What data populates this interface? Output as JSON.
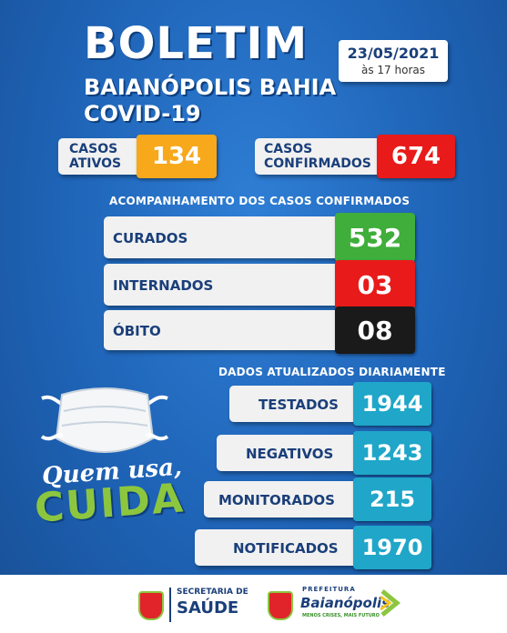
{
  "header": {
    "title": "BOLETIM",
    "subtitle_1": "BAIANÓPOLIS BAHIA",
    "subtitle_2": "COVID-19",
    "date": "23/05/2021",
    "time": "às 17 horas"
  },
  "summary": [
    {
      "label_1": "CASOS",
      "label_2": "ATIVOS",
      "value": "134",
      "color": "#f7a81b"
    },
    {
      "label_1": "CASOS",
      "label_2": "CONFIRMADOS",
      "value": "674",
      "color": "#e81a1a"
    }
  ],
  "confirmed_section": {
    "heading": "ACOMPANHAMENTO DOS CASOS CONFIRMADOS",
    "items": [
      {
        "label": "CURADOS",
        "value": "532",
        "color": "#3fae3a"
      },
      {
        "label": "INTERNADOS",
        "value": "03",
        "color": "#e81a1a"
      },
      {
        "label": "ÓBITO",
        "value": "08",
        "color": "#1a1a1a"
      }
    ]
  },
  "daily_section": {
    "heading": "DADOS ATUALIZADOS DIARIAMENTE",
    "items": [
      {
        "label": "TESTADOS",
        "value": "1944",
        "color": "#1fa6c9"
      },
      {
        "label": "NEGATIVOS",
        "value": "1243",
        "color": "#1fa6c9"
      },
      {
        "label": "MONITORADOS",
        "value": "215",
        "color": "#1fa6c9"
      },
      {
        "label": "NOTIFICADOS",
        "value": "1970",
        "color": "#1fa6c9"
      }
    ]
  },
  "slogan": {
    "line_1": "Quem usa,",
    "line_2": "CUIDA"
  },
  "footer": {
    "left_line_1": "SECRETARIA DE",
    "left_line_2": "SAÚDE",
    "right_line_1": "PREFEITURA",
    "right_line_2": "Baianópolis",
    "right_line_3": "MENOS CRISES, MAIS FUTURO"
  }
}
